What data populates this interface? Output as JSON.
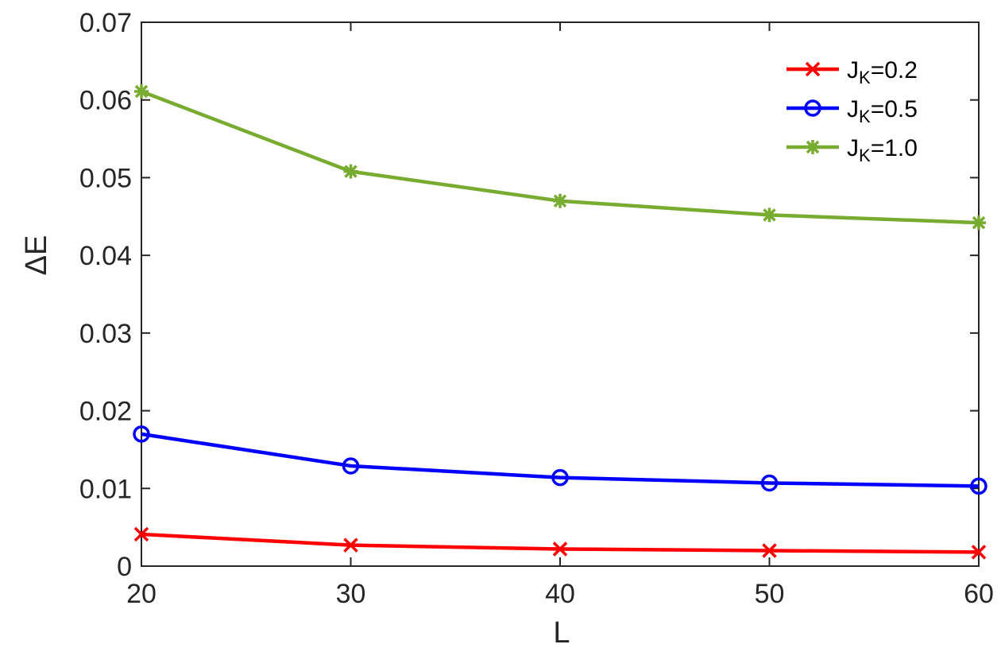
{
  "chart_data": {
    "type": "line",
    "title": "",
    "xlabel": "L",
    "ylabel": "ΔE",
    "x": [
      20,
      30,
      40,
      50,
      60
    ],
    "xlim": [
      20,
      60
    ],
    "ylim": [
      0,
      0.07
    ],
    "xticks": [
      20,
      30,
      40,
      50,
      60
    ],
    "yticks": [
      0,
      0.01,
      0.02,
      0.03,
      0.04,
      0.05,
      0.06,
      0.07
    ],
    "xtick_labels": [
      "20",
      "30",
      "40",
      "50",
      "60"
    ],
    "ytick_labels": [
      "0",
      "0.01",
      "0.02",
      "0.03",
      "0.04",
      "0.05",
      "0.06",
      "0.07"
    ],
    "grid": false,
    "legend_position": "top-right",
    "series": [
      {
        "name_main": "J",
        "name_sub": "K",
        "name_value": "=0.2",
        "color": "#ff0000",
        "marker": "x",
        "values": [
          0.0041,
          0.0027,
          0.0022,
          0.002,
          0.0018
        ]
      },
      {
        "name_main": "J",
        "name_sub": "K",
        "name_value": "=0.5",
        "color": "#0000ff",
        "marker": "circle",
        "values": [
          0.017,
          0.0129,
          0.0114,
          0.0107,
          0.0103
        ]
      },
      {
        "name_main": "J",
        "name_sub": "K",
        "name_value": "=1.0",
        "color": "#77ac30",
        "marker": "asterisk",
        "values": [
          0.0611,
          0.0508,
          0.047,
          0.0452,
          0.0442
        ]
      }
    ]
  }
}
